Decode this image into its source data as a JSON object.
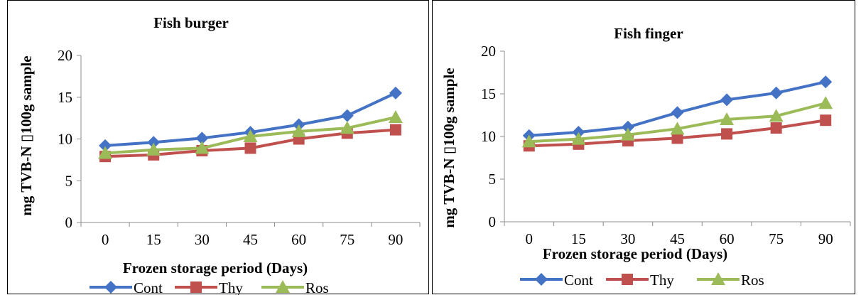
{
  "chart_data": [
    {
      "type": "line",
      "title": "Fish burger",
      "xlabel": "Frozen storage period (Days)",
      "ylabel": "mg TVB-N ▯100g sample",
      "categories": [
        "0",
        "15",
        "30",
        "45",
        "60",
        "75",
        "90"
      ],
      "ylim": [
        0,
        20
      ],
      "yticks": [
        "0",
        "5",
        "10",
        "15",
        "20"
      ],
      "grid": false,
      "legend": "bottom",
      "series": [
        {
          "name": "Cont",
          "color": "#4472C4",
          "marker": "diamond",
          "values": [
            9.2,
            9.6,
            10.1,
            10.8,
            11.7,
            12.8,
            15.5
          ]
        },
        {
          "name": "Thy",
          "color": "#C0504D",
          "marker": "square",
          "values": [
            7.9,
            8.1,
            8.6,
            8.9,
            10.0,
            10.7,
            11.1
          ]
        },
        {
          "name": "Ros",
          "color": "#9BBB59",
          "marker": "triangle",
          "values": [
            8.3,
            8.7,
            8.9,
            10.3,
            10.9,
            11.3,
            12.6
          ]
        }
      ]
    },
    {
      "type": "line",
      "title": "Fish finger",
      "xlabel": "Frozen storage period (Days)",
      "ylabel": "mg TVB-N ▯100g sample",
      "categories": [
        "0",
        "15",
        "30",
        "45",
        "60",
        "75",
        "90"
      ],
      "ylim": [
        0,
        20
      ],
      "yticks": [
        "0",
        "5",
        "10",
        "15",
        "20"
      ],
      "grid": false,
      "legend": "bottom",
      "series": [
        {
          "name": "Cont",
          "color": "#4472C4",
          "marker": "diamond",
          "values": [
            10.1,
            10.5,
            11.1,
            12.8,
            14.3,
            15.1,
            16.4
          ]
        },
        {
          "name": "Thy",
          "color": "#C0504D",
          "marker": "square",
          "values": [
            8.9,
            9.1,
            9.5,
            9.8,
            10.3,
            11.0,
            11.9
          ]
        },
        {
          "name": "Ros",
          "color": "#9BBB59",
          "marker": "triangle",
          "values": [
            9.4,
            9.7,
            10.2,
            10.9,
            12.0,
            12.4,
            13.9
          ]
        }
      ]
    }
  ]
}
